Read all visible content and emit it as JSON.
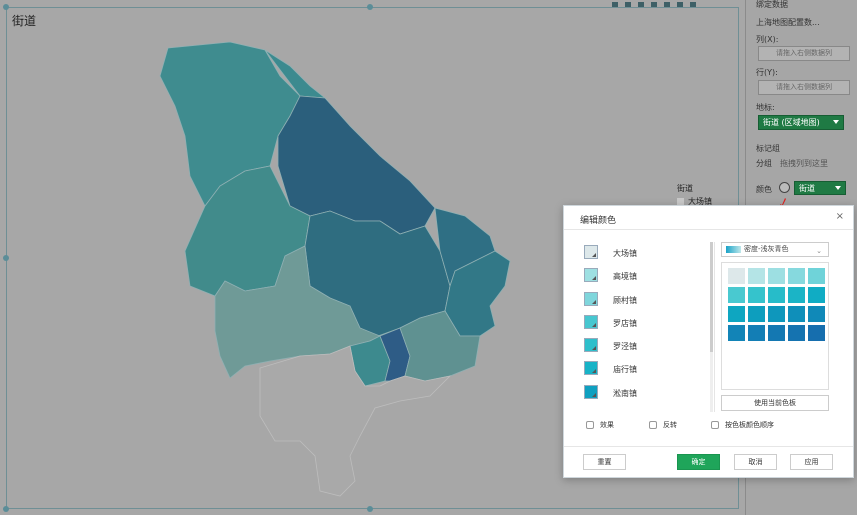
{
  "chart": {
    "title": "街道",
    "legend_title": "街道",
    "legend_first_item": "大场镇"
  },
  "panel": {
    "header": "绑定数据",
    "dataset": "上海地图配置数...",
    "columns_label": "列(X):",
    "columns_placeholder": "请拖入右侧数据列",
    "rows_label": "行(Y):",
    "rows_placeholder": "请拖入右侧数据列",
    "geo_label": "地标:",
    "geo_value": "街道 (区域地图)",
    "marks_label": "标记组",
    "group_label": "分组",
    "group_placeholder": "拖拽列到这里",
    "color_label": "颜色",
    "color_value": "街道"
  },
  "dialog": {
    "title": "编辑颜色",
    "close": "×",
    "items": [
      {
        "label": "大场镇",
        "color": "#dde8ea"
      },
      {
        "label": "高境镇",
        "color": "#9ee0e2"
      },
      {
        "label": "顾村镇",
        "color": "#7fd6dc"
      },
      {
        "label": "罗店镇",
        "color": "#47c7d0"
      },
      {
        "label": "罗泾镇",
        "color": "#2ebfcb"
      },
      {
        "label": "庙行镇",
        "color": "#17b3c7"
      },
      {
        "label": "淞南镇",
        "color": "#0fa0c0"
      }
    ],
    "palette_name": "密度-浅灰青色",
    "palette_colors": [
      "#dde8ea",
      "#b4e4e6",
      "#9ddfe2",
      "#86d9de",
      "#6fd3d9",
      "#49c9d0",
      "#35c3cc",
      "#27bcc9",
      "#1bb4c6",
      "#10acc4",
      "#0ea6c1",
      "#0d9ebe",
      "#0e97bc",
      "#0f8fba",
      "#1089b8",
      "#1284b7",
      "#137eb5",
      "#1478b2",
      "#1573b0",
      "#166eae"
    ],
    "use_palette_button": "使用当前色板",
    "checkbox_effect": "效果",
    "checkbox_reverse": "反转",
    "checkbox_order": "按色板颜色顺序",
    "reset_button": "重置",
    "ok_button": "确定",
    "cancel_button": "取消",
    "apply_button": "应用"
  }
}
